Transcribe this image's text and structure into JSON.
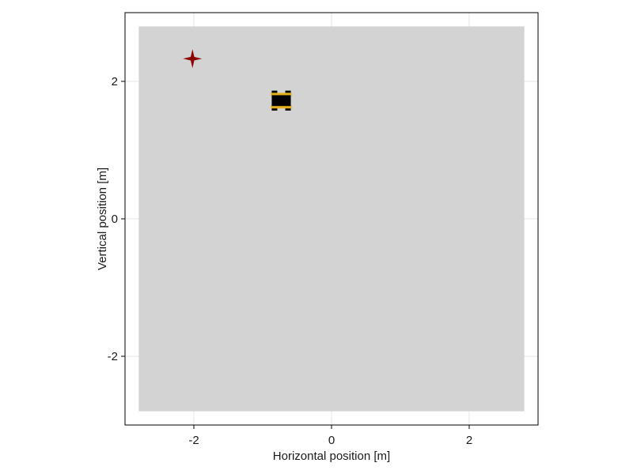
{
  "chart_data": {
    "type": "scatter",
    "title": "",
    "xlabel": "Horizontal position [m]",
    "ylabel": "Vertical position [m]",
    "xlim": [
      -3.0,
      3.0
    ],
    "ylim": [
      -3.0,
      3.0
    ],
    "xticks": [
      -2,
      0,
      2
    ],
    "yticks": [
      -2,
      0,
      2
    ],
    "xtick_labels": [
      "-2",
      "0",
      "2"
    ],
    "ytick_labels": [
      "-2",
      "0",
      "2"
    ],
    "grid": true,
    "arena": {
      "x": [
        -2.8,
        2.8
      ],
      "y": [
        -2.8,
        2.8
      ],
      "color": "#d3d3d3"
    },
    "target": {
      "x": -2.02,
      "y": 2.33,
      "marker": "star4",
      "color": "#8b0000"
    },
    "robot": {
      "x": -0.73,
      "y": 1.72,
      "width": 0.3,
      "height": 0.25,
      "body_color": "#000000",
      "wheel_color": "#e8b21e"
    }
  }
}
